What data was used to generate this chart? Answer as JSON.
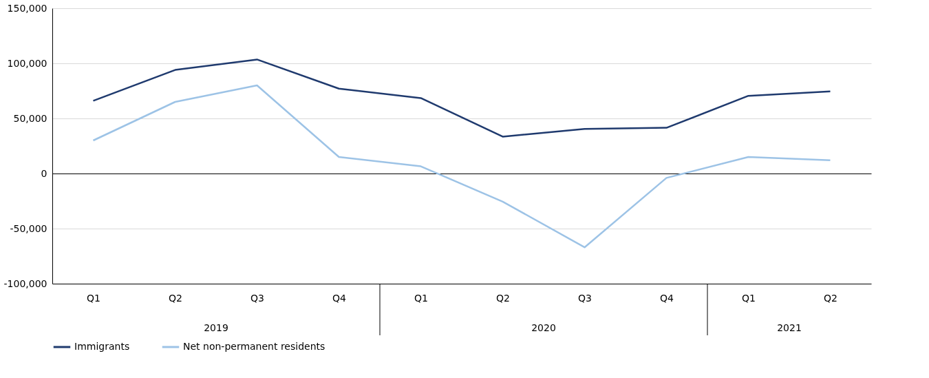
{
  "chart_data": {
    "type": "line",
    "categories": [
      "Q1",
      "Q2",
      "Q3",
      "Q4",
      "Q1",
      "Q2",
      "Q3",
      "Q4",
      "Q1",
      "Q2"
    ],
    "annotations": [
      "2019",
      "2020",
      "2021"
    ],
    "series": [
      {
        "name": "Immigrants",
        "color": "#1f3a6e",
        "values": [
          66000,
          94000,
          103500,
          77000,
          68500,
          33500,
          40500,
          41500,
          70500,
          74500
        ]
      },
      {
        "name": "Net non-permanent residents",
        "color": "#9dc3e6",
        "values": [
          30000,
          65000,
          80000,
          15000,
          6500,
          -25500,
          -67000,
          -4000,
          15000,
          12000
        ]
      }
    ],
    "ylim": [
      -100000,
      150000
    ],
    "yticks": [
      {
        "value": -100000,
        "label": "-100,000"
      },
      {
        "value": -50000,
        "label": "-50,000"
      },
      0,
      {
        "value": 50000,
        "label": "50,000"
      },
      {
        "value": 100000,
        "label": "100,000"
      },
      {
        "value": 150000,
        "label": "150,000"
      }
    ],
    "grid": "y",
    "legend": "bottom",
    "marker": "none",
    "line_style": "solid"
  }
}
